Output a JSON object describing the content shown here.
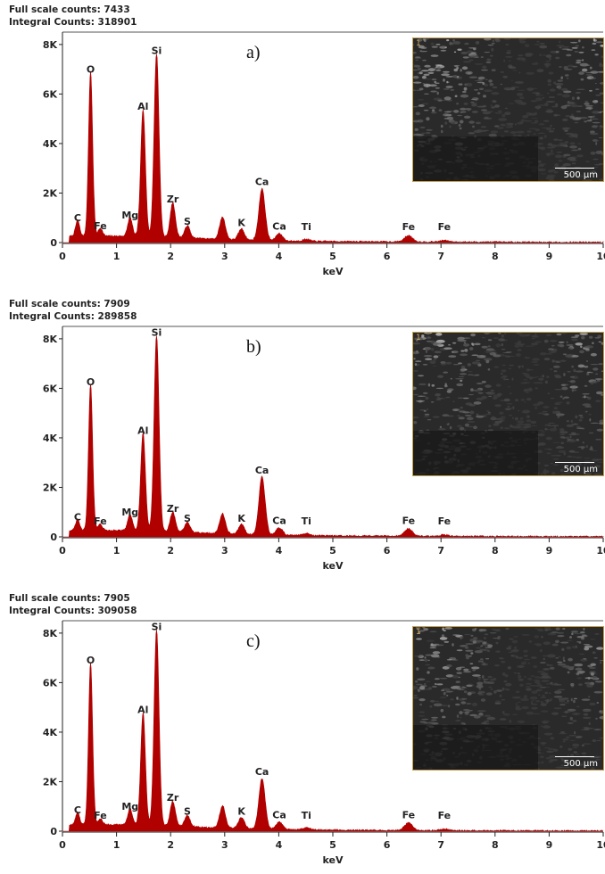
{
  "chart_data": [
    {
      "type": "line",
      "panel_label": "a)",
      "full_scale_counts": "Full scale counts: 7433",
      "integral_counts": "Integral Counts: 318901",
      "xlabel": "keV",
      "xlim": [
        0,
        10
      ],
      "ylim": [
        0,
        8500
      ],
      "x_ticks": [
        "0",
        "1",
        "2",
        "3",
        "4",
        "5",
        "6",
        "7",
        "8",
        "9",
        "10"
      ],
      "y_ticks": [
        "0",
        "2K",
        "4K",
        "6K",
        "8K"
      ],
      "color": "#b00000",
      "inset_scale": "500 µm",
      "inset_index": "1",
      "peaks": [
        {
          "el": "C",
          "x": 0.28,
          "y": 650
        },
        {
          "el": "Fe",
          "x": 0.7,
          "y": 320
        },
        {
          "el": "O",
          "x": 0.52,
          "y": 6650
        },
        {
          "el": "Mg",
          "x": 1.25,
          "y": 750
        },
        {
          "el": "Al",
          "x": 1.49,
          "y": 5150
        },
        {
          "el": "Si",
          "x": 1.74,
          "y": 7400
        },
        {
          "el": "Zr",
          "x": 2.04,
          "y": 1400
        },
        {
          "el": "S",
          "x": 2.31,
          "y": 500
        },
        {
          "el": "",
          "x": 2.96,
          "y": 900
        },
        {
          "el": "K",
          "x": 3.31,
          "y": 450
        },
        {
          "el": "Ca",
          "x": 3.69,
          "y": 2100
        },
        {
          "el": "Ca",
          "x": 4.01,
          "y": 300
        },
        {
          "el": "Ti",
          "x": 4.51,
          "y": 80
        },
        {
          "el": "Fe",
          "x": 6.4,
          "y": 250
        },
        {
          "el": "Fe",
          "x": 7.06,
          "y": 60
        }
      ]
    },
    {
      "type": "line",
      "panel_label": "b)",
      "full_scale_counts": "Full scale counts: 7909",
      "integral_counts": "Integral Counts: 289858",
      "xlabel": "keV",
      "xlim": [
        0,
        10
      ],
      "ylim": [
        0,
        8500
      ],
      "x_ticks": [
        "0",
        "1",
        "2",
        "3",
        "4",
        "5",
        "6",
        "7",
        "8",
        "9",
        "10"
      ],
      "y_ticks": [
        "0",
        "2K",
        "4K",
        "6K",
        "8K"
      ],
      "color": "#b00000",
      "inset_scale": "500 µm",
      "inset_index": "1",
      "peaks": [
        {
          "el": "C",
          "x": 0.28,
          "y": 450
        },
        {
          "el": "Fe",
          "x": 0.7,
          "y": 250
        },
        {
          "el": "O",
          "x": 0.52,
          "y": 5900
        },
        {
          "el": "Mg",
          "x": 1.25,
          "y": 650
        },
        {
          "el": "Al",
          "x": 1.49,
          "y": 3950
        },
        {
          "el": "Si",
          "x": 1.74,
          "y": 7900
        },
        {
          "el": "Zr",
          "x": 2.04,
          "y": 800
        },
        {
          "el": "S",
          "x": 2.31,
          "y": 400
        },
        {
          "el": "",
          "x": 2.96,
          "y": 800
        },
        {
          "el": "K",
          "x": 3.31,
          "y": 400
        },
        {
          "el": "Ca",
          "x": 3.69,
          "y": 2350
        },
        {
          "el": "Ca",
          "x": 4.01,
          "y": 300
        },
        {
          "el": "Ti",
          "x": 4.51,
          "y": 80
        },
        {
          "el": "Fe",
          "x": 6.4,
          "y": 300
        },
        {
          "el": "Fe",
          "x": 7.06,
          "y": 60
        }
      ]
    },
    {
      "type": "line",
      "panel_label": "c)",
      "full_scale_counts": "Full scale counts: 7905",
      "integral_counts": "Integral Counts: 309058",
      "xlabel": "keV",
      "xlim": [
        0,
        10
      ],
      "ylim": [
        0,
        8500
      ],
      "x_ticks": [
        "0",
        "1",
        "2",
        "3",
        "4",
        "5",
        "6",
        "7",
        "8",
        "9",
        "10"
      ],
      "y_ticks": [
        "0",
        "2K",
        "4K",
        "6K",
        "8K"
      ],
      "color": "#b00000",
      "inset_scale": "500 µm",
      "inset_index": "1",
      "peaks": [
        {
          "el": "C",
          "x": 0.28,
          "y": 500
        },
        {
          "el": "Fe",
          "x": 0.7,
          "y": 250
        },
        {
          "el": "O",
          "x": 0.52,
          "y": 6550
        },
        {
          "el": "Mg",
          "x": 1.25,
          "y": 650
        },
        {
          "el": "Al",
          "x": 1.49,
          "y": 4550
        },
        {
          "el": "Si",
          "x": 1.74,
          "y": 7900
        },
        {
          "el": "Zr",
          "x": 2.04,
          "y": 1000
        },
        {
          "el": "S",
          "x": 2.31,
          "y": 450
        },
        {
          "el": "",
          "x": 2.96,
          "y": 900
        },
        {
          "el": "K",
          "x": 3.31,
          "y": 450
        },
        {
          "el": "Ca",
          "x": 3.69,
          "y": 2050
        },
        {
          "el": "Ca",
          "x": 4.01,
          "y": 300
        },
        {
          "el": "Ti",
          "x": 4.51,
          "y": 80
        },
        {
          "el": "Fe",
          "x": 6.4,
          "y": 300
        },
        {
          "el": "Fe",
          "x": 7.06,
          "y": 60
        }
      ]
    }
  ]
}
